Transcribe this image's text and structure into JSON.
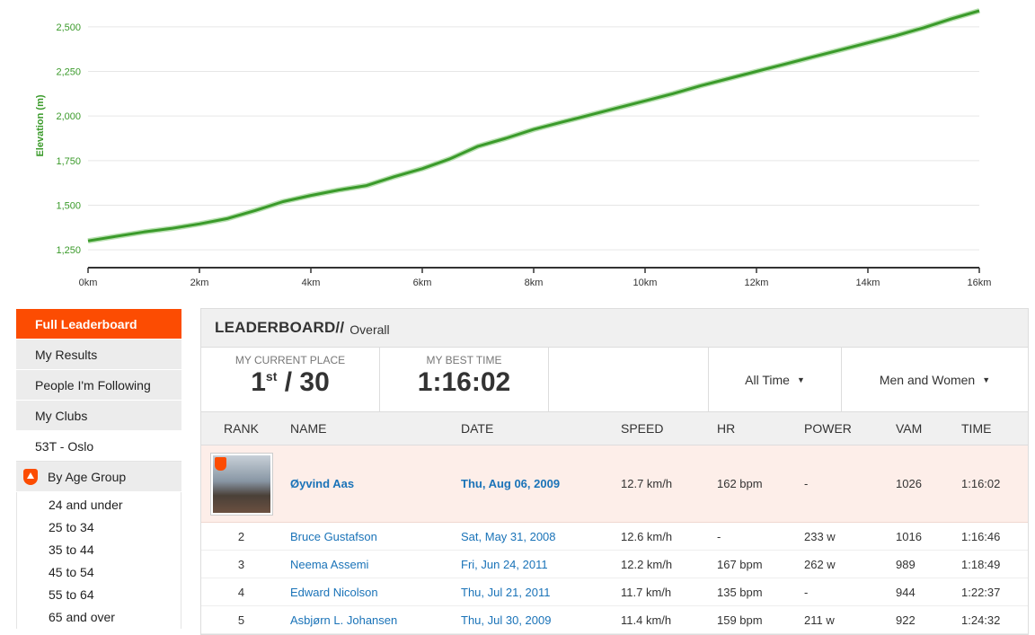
{
  "chart_data": {
    "type": "line",
    "ylabel": "Elevation (m)",
    "xlabel": "",
    "y_ticks": [
      "1,250",
      "1,500",
      "1,750",
      "2,000",
      "2,250",
      "2,500"
    ],
    "x_ticks": [
      "0km",
      "2km",
      "4km",
      "6km",
      "8km",
      "10km",
      "12km",
      "14km",
      "16km"
    ],
    "xlim": [
      0,
      16
    ],
    "ylim": [
      1150,
      2600
    ],
    "series": [
      {
        "color": "#3a9a2a",
        "x": [
          0,
          0.5,
          1,
          1.5,
          2,
          2.5,
          3,
          3.5,
          4,
          4.5,
          5,
          5.5,
          6,
          6.5,
          7,
          7.5,
          8,
          8.5,
          9,
          9.5,
          10,
          10.5,
          11,
          11.5,
          12,
          12.5,
          13,
          13.5,
          14,
          14.5,
          15,
          15.5,
          16
        ],
        "values": [
          1300,
          1325,
          1350,
          1370,
          1395,
          1425,
          1470,
          1520,
          1555,
          1585,
          1610,
          1660,
          1705,
          1760,
          1830,
          1875,
          1925,
          1965,
          2005,
          2045,
          2085,
          2125,
          2170,
          2210,
          2250,
          2290,
          2330,
          2370,
          2410,
          2450,
          2495,
          2545,
          2590
        ]
      }
    ]
  },
  "sidebar": {
    "items": [
      {
        "label": "Full Leaderboard"
      },
      {
        "label": "My Results"
      },
      {
        "label": "People I'm Following"
      },
      {
        "label": "My Clubs"
      },
      {
        "label": "53T - Oslo"
      },
      {
        "label": "By Age Group"
      }
    ],
    "age_groups": [
      "24 and under",
      "25 to 34",
      "35 to 44",
      "45 to 54",
      "55 to 64",
      "65 and over"
    ]
  },
  "board": {
    "title": "LEADERBOARD//",
    "subtitle": "Overall",
    "current_place_label": "MY CURRENT PLACE",
    "current_place": "1",
    "current_place_suffix": "st",
    "current_place_total": " / 30",
    "best_time_label": "MY BEST TIME",
    "best_time": "1:16:02",
    "filter_time": "All Time",
    "filter_gender": "Men and Women",
    "caret": "▼",
    "columns": [
      "RANK",
      "NAME",
      "DATE",
      "SPEED",
      "HR",
      "POWER",
      "VAM",
      "TIME"
    ],
    "rows": [
      {
        "rank": "",
        "name": "Øyvind Aas",
        "date": "Thu, Aug 06, 2009",
        "speed": "12.7 km/h",
        "hr": "162 bpm",
        "power": "-",
        "vam": "1026",
        "time": "1:16:02"
      },
      {
        "rank": "2",
        "name": "Bruce Gustafson",
        "date": "Sat, May 31, 2008",
        "speed": "12.6 km/h",
        "hr": "-",
        "power": "233 w",
        "vam": "1016",
        "time": "1:16:46"
      },
      {
        "rank": "3",
        "name": "Neema Assemi",
        "date": "Fri, Jun 24, 2011",
        "speed": "12.2 km/h",
        "hr": "167 bpm",
        "power": "262 w",
        "vam": "989",
        "time": "1:18:49"
      },
      {
        "rank": "4",
        "name": "Edward Nicolson",
        "date": "Thu, Jul 21, 2011",
        "speed": "11.7 km/h",
        "hr": "135 bpm",
        "power": "-",
        "vam": "944",
        "time": "1:22:37"
      },
      {
        "rank": "5",
        "name": "Asbjørn L. Johansen",
        "date": "Thu, Jul 30, 2009",
        "speed": "11.4 km/h",
        "hr": "159 bpm",
        "power": "211 w",
        "vam": "922",
        "time": "1:24:32"
      }
    ]
  }
}
